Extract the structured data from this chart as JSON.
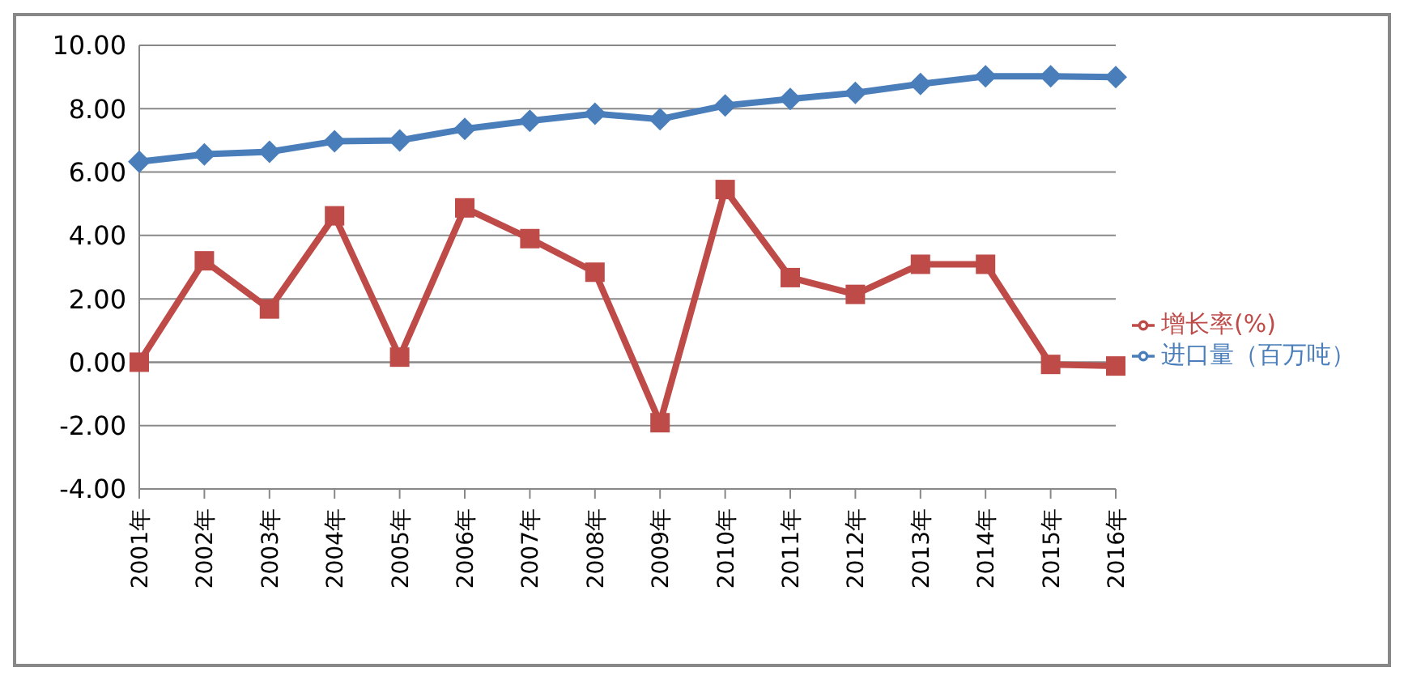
{
  "chart_data": {
    "type": "line",
    "categories": [
      "2001年",
      "2002年",
      "2003年",
      "2004年",
      "2005年",
      "2006年",
      "2007年",
      "2008年",
      "2009年",
      "2010年",
      "2011年",
      "2012年",
      "2013年",
      "2014年",
      "2015年",
      "2016年"
    ],
    "series": [
      {
        "name": "进口量（百万吨）",
        "color": "#4a7ebb",
        "marker": "diamond",
        "values": [
          6.33,
          6.56,
          6.64,
          6.97,
          7.0,
          7.36,
          7.62,
          7.84,
          7.67,
          8.1,
          8.31,
          8.5,
          8.78,
          9.02,
          9.02,
          9.0
        ]
      },
      {
        "name": "增长率(%)",
        "color": "#be4b48",
        "marker": "square",
        "values": [
          0.0,
          3.2,
          1.68,
          4.62,
          0.16,
          4.87,
          3.9,
          2.84,
          -1.91,
          5.45,
          2.67,
          2.14,
          3.09,
          3.09,
          -0.07,
          -0.12
        ]
      }
    ],
    "ylim": [
      -4,
      10
    ],
    "yticks": [
      {
        "value": -4,
        "label": "-4.00"
      },
      {
        "value": -2,
        "label": "-2.00"
      },
      {
        "value": 0,
        "label": "0.00"
      },
      {
        "value": 2,
        "label": "2.00"
      },
      {
        "value": 4,
        "label": "4.00"
      },
      {
        "value": 6,
        "label": "6.00"
      },
      {
        "value": 8,
        "label": "8.00"
      },
      {
        "value": 10,
        "label": "10.00"
      }
    ],
    "grid": "y",
    "legend": "right",
    "line_style": "solid"
  }
}
